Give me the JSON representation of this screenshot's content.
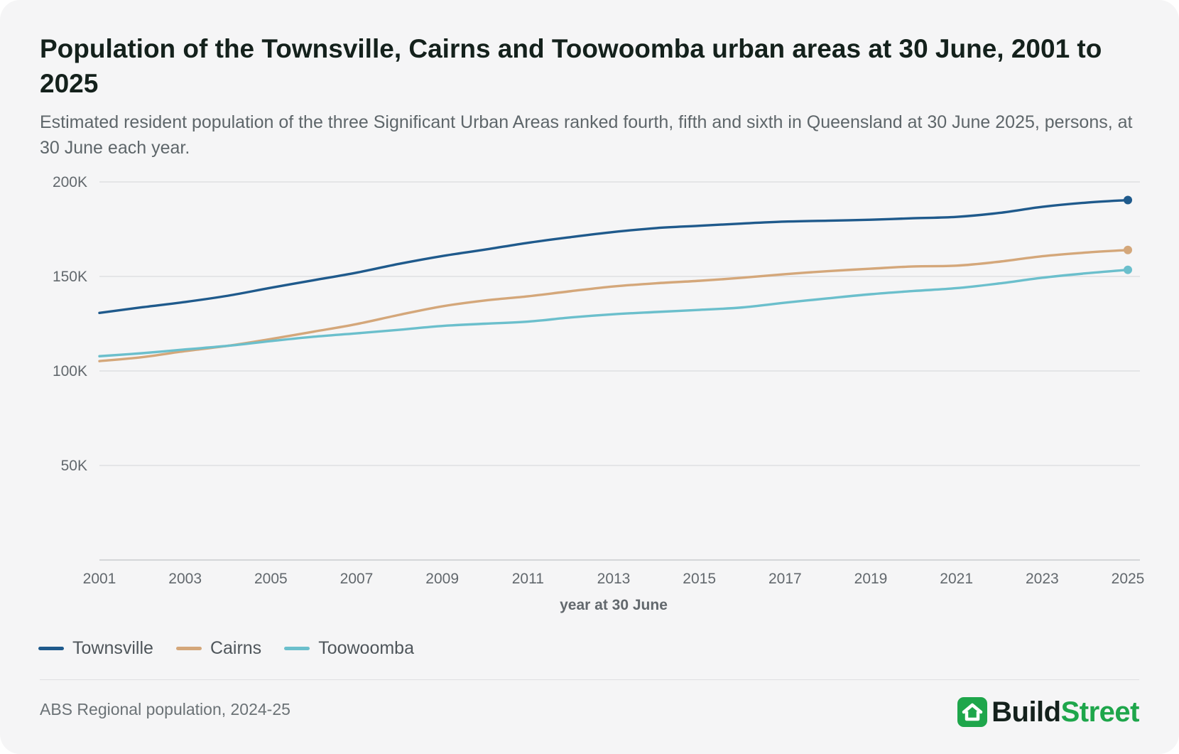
{
  "header": {
    "title": "Population of the Townsville, Cairns and Toowoomba urban areas at 30 June, 2001 to 2025",
    "subtitle": "Estimated resident population of the three Significant Urban Areas ranked fourth, fifth and sixth in Queensland at 30 June 2025, persons, at 30 June each year."
  },
  "footer": {
    "source": "ABS Regional population, 2024-25",
    "brand_part1": "Build",
    "brand_part2": "Street"
  },
  "colors": {
    "townsville": "#1f5a8c",
    "cairns": "#d4a77a",
    "toowoomba": "#6bbfcc",
    "brand_dark": "#14211c",
    "brand_green": "#1ea64b"
  },
  "chart_data": {
    "type": "line",
    "title": "Population of the Townsville, Cairns and Toowoomba urban areas at 30 June, 2001 to 2025",
    "xlabel": "year at 30 June",
    "ylabel": "",
    "x": [
      2001,
      2002,
      2003,
      2004,
      2005,
      2006,
      2007,
      2008,
      2009,
      2010,
      2011,
      2012,
      2013,
      2014,
      2015,
      2016,
      2017,
      2018,
      2019,
      2020,
      2021,
      2022,
      2023,
      2024,
      2025
    ],
    "xticks": [
      2001,
      2003,
      2005,
      2007,
      2009,
      2011,
      2013,
      2015,
      2017,
      2019,
      2021,
      2023,
      2025
    ],
    "xtick_labels": [
      "2001",
      "2003",
      "2005",
      "2007",
      "2009",
      "2011",
      "2013",
      "2015",
      "2017",
      "2019",
      "2021",
      "2023",
      "2025"
    ],
    "xlim": [
      2001,
      2025
    ],
    "ylim": [
      0,
      200000
    ],
    "yticks": [
      50000,
      100000,
      150000,
      200000
    ],
    "ytick_labels": [
      "50K",
      "100K",
      "150K",
      "200K"
    ],
    "grid": true,
    "legend_position": "bottom-left",
    "series": [
      {
        "name": "Townsville",
        "color": "#1f5a8c",
        "values": [
          130700,
          133700,
          136500,
          139800,
          144000,
          148000,
          152000,
          156700,
          160800,
          164200,
          167800,
          170800,
          173500,
          175600,
          176800,
          178000,
          179000,
          179500,
          180000,
          180800,
          181500,
          183600,
          186800,
          189000,
          190400
        ]
      },
      {
        "name": "Cairns",
        "color": "#d4a77a",
        "values": [
          105200,
          107300,
          110500,
          113300,
          116900,
          120800,
          124800,
          129700,
          134200,
          137300,
          139500,
          142200,
          144700,
          146400,
          147700,
          149300,
          151200,
          152800,
          154100,
          155300,
          155700,
          157800,
          160700,
          162600,
          164000
        ]
      },
      {
        "name": "Toowoomba",
        "color": "#6bbfcc",
        "values": [
          107800,
          109400,
          111400,
          113300,
          115800,
          118100,
          119900,
          121800,
          123800,
          125000,
          126100,
          128300,
          130000,
          131200,
          132300,
          133600,
          136100,
          138400,
          140600,
          142300,
          143800,
          146300,
          149300,
          151600,
          153500
        ]
      }
    ]
  }
}
